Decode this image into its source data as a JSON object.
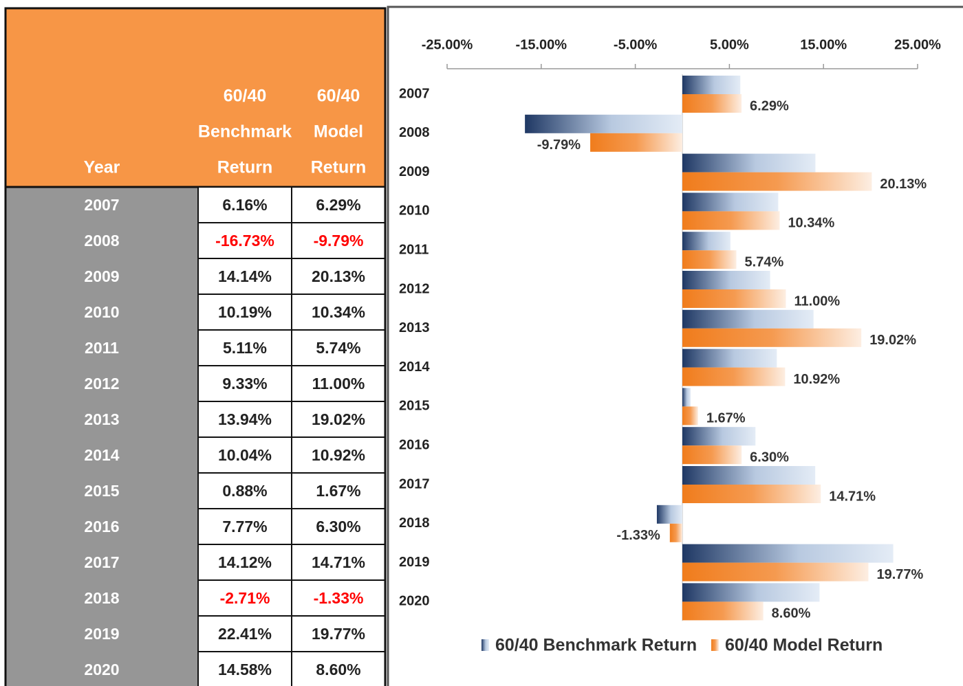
{
  "table": {
    "header": [
      [
        "Year"
      ],
      [
        "60/40",
        "Benchmark",
        "Return"
      ],
      [
        "60/40",
        "Model",
        "Return"
      ]
    ],
    "rows": [
      [
        "2007",
        "6.16%",
        "6.29%"
      ],
      [
        "2008",
        "-16.73%",
        "-9.79%"
      ],
      [
        "2009",
        "14.14%",
        "20.13%"
      ],
      [
        "2010",
        "10.19%",
        "10.34%"
      ],
      [
        "2011",
        "5.11%",
        "5.74%"
      ],
      [
        "2012",
        "9.33%",
        "11.00%"
      ],
      [
        "2013",
        "13.94%",
        "19.02%"
      ],
      [
        "2014",
        "10.04%",
        "10.92%"
      ],
      [
        "2015",
        "0.88%",
        "1.67%"
      ],
      [
        "2016",
        "7.77%",
        "6.30%"
      ],
      [
        "2017",
        "14.12%",
        "14.71%"
      ],
      [
        "2018",
        "-2.71%",
        "-1.33%"
      ],
      [
        "2019",
        "22.41%",
        "19.77%"
      ],
      [
        "2020",
        "14.58%",
        "8.60%"
      ]
    ]
  },
  "chart_data": {
    "type": "hbar",
    "categories": [
      "2007",
      "2008",
      "2009",
      "2010",
      "2011",
      "2012",
      "2013",
      "2014",
      "2015",
      "2016",
      "2017",
      "2018",
      "2019",
      "2020"
    ],
    "series": [
      {
        "name": "60/40 Benchmark Return",
        "color": "#1f3864",
        "values": [
          6.16,
          -16.73,
          14.14,
          10.19,
          5.11,
          9.33,
          13.94,
          10.04,
          0.88,
          7.77,
          14.12,
          -2.71,
          22.41,
          14.58
        ]
      },
      {
        "name": "60/40 Model Return",
        "color": "#f07c1c",
        "values": [
          6.29,
          -9.79,
          20.13,
          10.34,
          5.74,
          11.0,
          19.02,
          10.92,
          1.67,
          6.3,
          14.71,
          -1.33,
          19.77,
          8.6
        ],
        "value_labels": [
          "6.29%",
          "-9.79%",
          "20.13%",
          "10.34%",
          "5.74%",
          "11.00%",
          "19.02%",
          "10.92%",
          "1.67%",
          "6.30%",
          "14.71%",
          "-1.33%",
          "19.77%",
          "8.60%"
        ]
      }
    ],
    "xlim": [
      -25,
      25
    ],
    "xticks": [
      {
        "value": -25,
        "label": "-25.00%"
      },
      {
        "value": -15,
        "label": "-15.00%"
      },
      {
        "value": -5,
        "label": "-5.00%"
      },
      {
        "value": 5,
        "label": "5.00%"
      },
      {
        "value": 15,
        "label": "15.00%"
      },
      {
        "value": 25,
        "label": "25.00%"
      }
    ],
    "legend": "bottom"
  }
}
